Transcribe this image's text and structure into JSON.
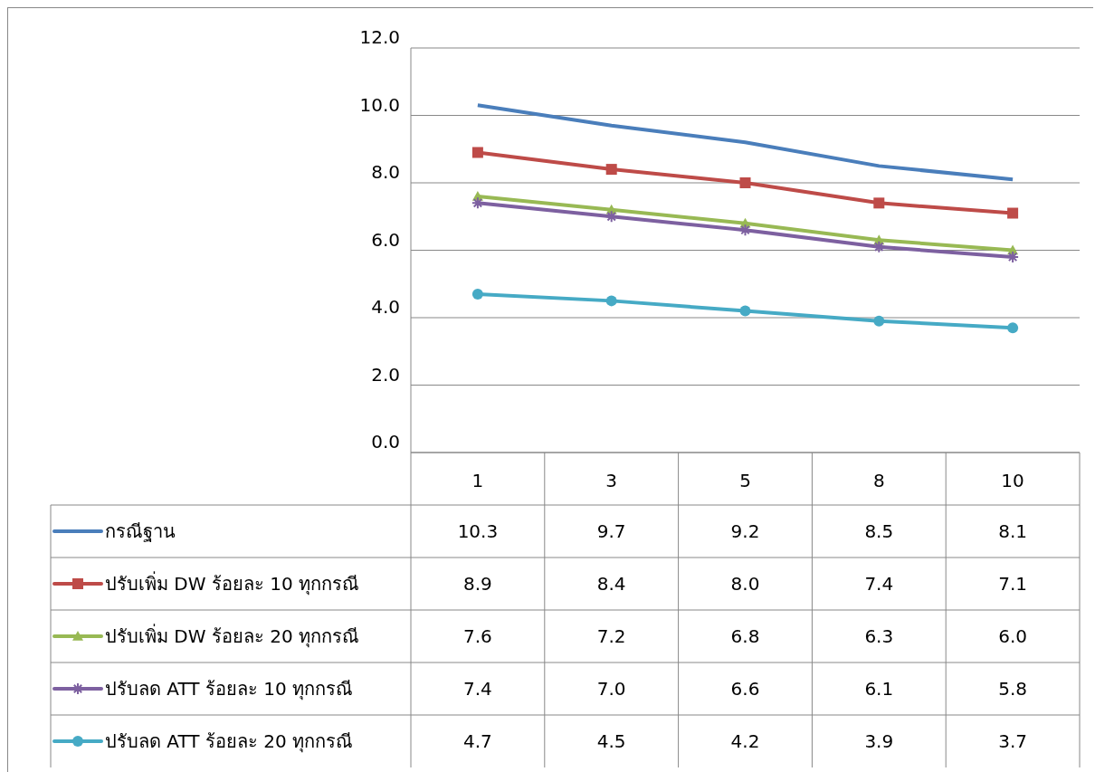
{
  "chart_data": {
    "type": "line",
    "categories": [
      "1",
      "3",
      "5",
      "8",
      "10"
    ],
    "ylim": [
      0,
      12
    ],
    "yticks": [
      {
        "value": 0,
        "label": "0.0"
      },
      {
        "value": 2,
        "label": "2.0"
      },
      {
        "value": 4,
        "label": "4.0"
      },
      {
        "value": 6,
        "label": "6.0"
      },
      {
        "value": 8,
        "label": "8.0"
      },
      {
        "value": 10,
        "label": "10.0"
      },
      {
        "value": 12,
        "label": "12.0"
      }
    ],
    "grid": "y",
    "legend": "bottom",
    "series": [
      {
        "name": "กรณีฐาน",
        "color": "#4a7ebb",
        "marker": "none",
        "values": [
          10.3,
          9.7,
          9.2,
          8.5,
          8.1
        ],
        "value_labels": [
          "10.3",
          "9.7",
          "9.2",
          "8.5",
          "8.1"
        ]
      },
      {
        "name": "ปรับเพิ่ม DW ร้อยละ 10 ทุกกรณี",
        "color": "#be4b48",
        "marker": "square",
        "values": [
          8.9,
          8.4,
          8.0,
          7.4,
          7.1
        ],
        "value_labels": [
          "8.9",
          "8.4",
          "8.0",
          "7.4",
          "7.1"
        ]
      },
      {
        "name": "ปรับเพิ่ม DW ร้อยละ 20 ทุกกรณี",
        "color": "#98b954",
        "marker": "triangle",
        "values": [
          7.6,
          7.2,
          6.8,
          6.3,
          6.0
        ],
        "value_labels": [
          "7.6",
          "7.2",
          "6.8",
          "6.3",
          "6.0"
        ]
      },
      {
        "name": "ปรับลด ATT ร้อยละ 10 ทุกกรณี",
        "color": "#7d60a0",
        "marker": "cross",
        "values": [
          7.4,
          7.0,
          6.6,
          6.1,
          5.8
        ],
        "value_labels": [
          "7.4",
          "7.0",
          "6.6",
          "6.1",
          "5.8"
        ]
      },
      {
        "name": "ปรับลด ATT ร้อยละ 20 ทุกกรณี",
        "color": "#46aac5",
        "marker": "circle",
        "values": [
          4.7,
          4.5,
          4.2,
          3.9,
          3.7
        ],
        "value_labels": [
          "4.7",
          "4.5",
          "4.2",
          "3.9",
          "3.7"
        ]
      }
    ]
  }
}
